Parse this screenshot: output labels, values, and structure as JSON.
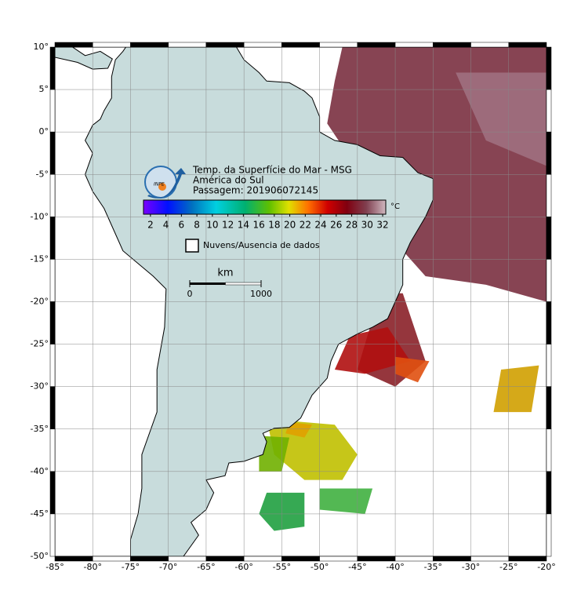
{
  "map": {
    "type": "map",
    "title_lines": [
      "Temp. da Superfície do Mar - MSG",
      "América do Sul",
      "Passagem: 201906072145"
    ],
    "logo": "INPE",
    "xlim": [
      -85,
      -20
    ],
    "ylim": [
      -50,
      10
    ],
    "xticks": [
      {
        "value": -85,
        "label": "-85°"
      },
      {
        "value": -80,
        "label": "-80°"
      },
      {
        "value": -75,
        "label": "-75°"
      },
      {
        "value": -70,
        "label": "-70°"
      },
      {
        "value": -65,
        "label": "-65°"
      },
      {
        "value": -60,
        "label": "-60°"
      },
      {
        "value": -55,
        "label": "-55°"
      },
      {
        "value": -50,
        "label": "-50°"
      },
      {
        "value": -45,
        "label": "-45°"
      },
      {
        "value": -40,
        "label": "-40°"
      },
      {
        "value": -35,
        "label": "-35°"
      },
      {
        "value": -30,
        "label": "-30°"
      },
      {
        "value": -25,
        "label": "-25°"
      },
      {
        "value": -20,
        "label": "-20°"
      }
    ],
    "yticks": [
      {
        "value": 10,
        "label": "10°"
      },
      {
        "value": 5,
        "label": "5°"
      },
      {
        "value": 0,
        "label": "0°"
      },
      {
        "value": -5,
        "label": "-5°"
      },
      {
        "value": -10,
        "label": "-10°"
      },
      {
        "value": -15,
        "label": "-15°"
      },
      {
        "value": -20,
        "label": "-20°"
      },
      {
        "value": -25,
        "label": "-25°"
      },
      {
        "value": -30,
        "label": "-30°"
      },
      {
        "value": -35,
        "label": "-35°"
      },
      {
        "value": -40,
        "label": "-40°"
      },
      {
        "value": -45,
        "label": "-45°"
      },
      {
        "value": -50,
        "label": "-50°"
      }
    ],
    "grid": true,
    "colorbar": {
      "lim": [
        1.1,
        32.4
      ],
      "ticks": [
        2,
        4,
        6,
        8,
        10,
        12,
        14,
        16,
        18,
        20,
        22,
        24,
        26,
        28,
        30,
        32
      ],
      "unit": "°C"
    },
    "legend": "Nuvens/Ausencia de dados",
    "scale": {
      "label": "km",
      "ticks": [
        0,
        1000
      ]
    }
  }
}
